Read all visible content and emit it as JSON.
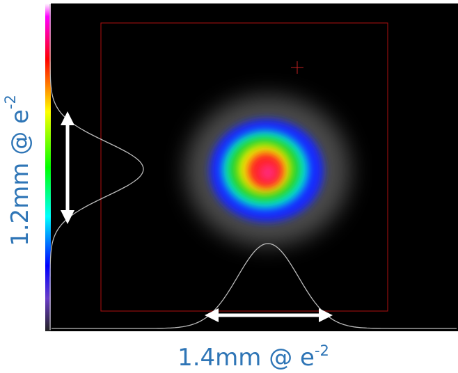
{
  "labels": {
    "vertical": {
      "text": "1.2mm @ e",
      "exponent": "-2"
    },
    "horizontal": {
      "text": "1.4mm @ e",
      "exponent": "-2"
    }
  }
}
